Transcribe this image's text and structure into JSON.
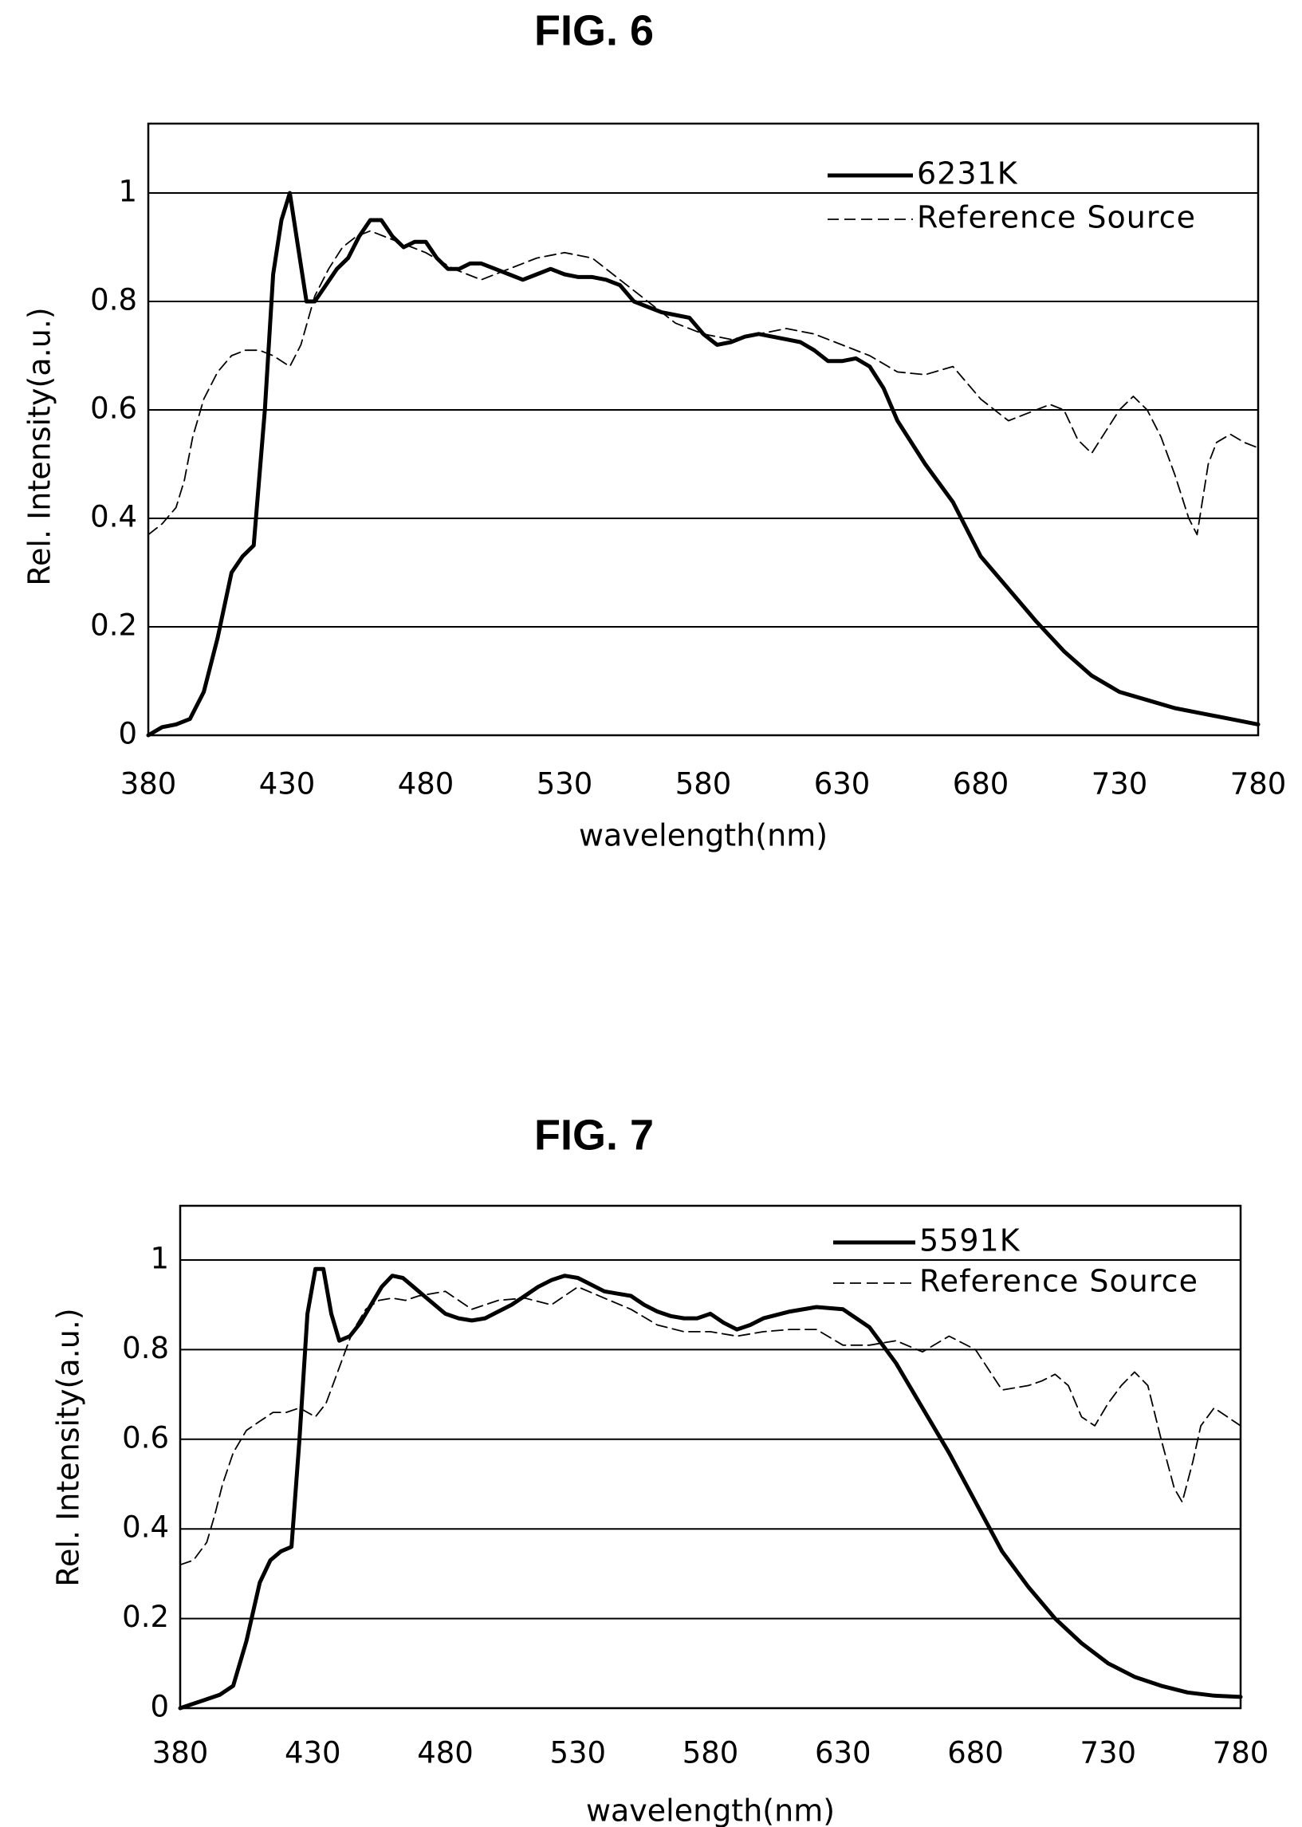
{
  "page": {
    "background": "#ffffff"
  },
  "chart_data": [
    {
      "type": "line",
      "title": "FIG. 6",
      "xlabel": "wavelength(nm)",
      "ylabel": "Rel. Intensity(a.u.)",
      "xlim": [
        380,
        780
      ],
      "ylim": [
        0,
        1.1
      ],
      "xticks": [
        "380",
        "430",
        "480",
        "530",
        "580",
        "630",
        "680",
        "730",
        "780"
      ],
      "yticks": [
        "0",
        "0.2",
        "0.4",
        "0.6",
        "0.8",
        "1"
      ],
      "grid": "horizontal",
      "legend_position": "top-right",
      "series": [
        {
          "name": "6231K",
          "style": "solid-thick",
          "color": "#000000",
          "x": [
            380,
            385,
            390,
            395,
            400,
            405,
            410,
            414,
            418,
            422,
            425,
            428,
            431,
            434,
            437,
            440,
            444,
            448,
            452,
            456,
            460,
            464,
            468,
            472,
            476,
            480,
            484,
            488,
            492,
            496,
            500,
            505,
            510,
            515,
            520,
            525,
            530,
            535,
            540,
            545,
            550,
            555,
            560,
            565,
            570,
            575,
            580,
            585,
            590,
            595,
            600,
            605,
            610,
            615,
            620,
            625,
            630,
            635,
            640,
            645,
            650,
            660,
            670,
            680,
            690,
            700,
            710,
            720,
            730,
            740,
            750,
            760,
            770,
            780
          ],
          "y": [
            0,
            0.015,
            0.02,
            0.03,
            0.08,
            0.18,
            0.3,
            0.33,
            0.35,
            0.6,
            0.85,
            0.95,
            1.0,
            0.9,
            0.8,
            0.8,
            0.83,
            0.86,
            0.88,
            0.92,
            0.95,
            0.95,
            0.92,
            0.9,
            0.91,
            0.91,
            0.88,
            0.86,
            0.86,
            0.87,
            0.87,
            0.86,
            0.85,
            0.84,
            0.85,
            0.86,
            0.85,
            0.845,
            0.845,
            0.84,
            0.83,
            0.8,
            0.79,
            0.78,
            0.775,
            0.77,
            0.74,
            0.72,
            0.725,
            0.735,
            0.74,
            0.735,
            0.73,
            0.725,
            0.71,
            0.69,
            0.69,
            0.695,
            0.68,
            0.64,
            0.58,
            0.5,
            0.43,
            0.33,
            0.27,
            0.21,
            0.155,
            0.11,
            0.08,
            0.065,
            0.05,
            0.04,
            0.03,
            0.02
          ]
        },
        {
          "name": "Reference Source",
          "style": "dashed-thin",
          "color": "#000000",
          "x": [
            380,
            385,
            390,
            393,
            396,
            400,
            405,
            410,
            415,
            420,
            425,
            428,
            431,
            435,
            440,
            445,
            450,
            455,
            460,
            465,
            470,
            480,
            490,
            500,
            510,
            520,
            530,
            540,
            550,
            560,
            570,
            580,
            590,
            600,
            610,
            620,
            630,
            640,
            650,
            660,
            670,
            680,
            690,
            700,
            705,
            710,
            715,
            720,
            725,
            730,
            735,
            740,
            745,
            750,
            755,
            758,
            762,
            765,
            770,
            775,
            780
          ],
          "y": [
            0.37,
            0.39,
            0.42,
            0.47,
            0.55,
            0.62,
            0.67,
            0.7,
            0.71,
            0.71,
            0.7,
            0.69,
            0.68,
            0.72,
            0.81,
            0.86,
            0.9,
            0.92,
            0.93,
            0.92,
            0.91,
            0.89,
            0.86,
            0.84,
            0.86,
            0.88,
            0.89,
            0.88,
            0.84,
            0.8,
            0.76,
            0.74,
            0.73,
            0.74,
            0.75,
            0.74,
            0.72,
            0.7,
            0.67,
            0.665,
            0.68,
            0.62,
            0.58,
            0.6,
            0.61,
            0.6,
            0.545,
            0.52,
            0.56,
            0.6,
            0.625,
            0.6,
            0.55,
            0.48,
            0.4,
            0.37,
            0.5,
            0.54,
            0.555,
            0.54,
            0.53
          ]
        }
      ]
    },
    {
      "type": "line",
      "title": "FIG. 7",
      "xlabel": "wavelength(nm)",
      "ylabel": "Rel. Intensity(a.u.)",
      "xlim": [
        380,
        780
      ],
      "ylim": [
        0,
        1.1
      ],
      "xticks": [
        "380",
        "430",
        "480",
        "530",
        "580",
        "630",
        "680",
        "730",
        "780"
      ],
      "yticks": [
        "0",
        "0.2",
        "0.4",
        "0.6",
        "0.8",
        "1"
      ],
      "grid": "horizontal",
      "legend_position": "top-right",
      "series": [
        {
          "name": "5591K",
          "style": "solid-thick",
          "color": "#000000",
          "x": [
            380,
            385,
            390,
            395,
            400,
            405,
            410,
            414,
            418,
            422,
            425,
            428,
            431,
            434,
            437,
            440,
            444,
            448,
            452,
            456,
            460,
            464,
            468,
            472,
            476,
            480,
            485,
            490,
            495,
            500,
            505,
            510,
            515,
            520,
            525,
            530,
            535,
            540,
            545,
            550,
            555,
            560,
            565,
            570,
            575,
            580,
            585,
            590,
            595,
            600,
            610,
            620,
            630,
            640,
            650,
            660,
            670,
            680,
            690,
            700,
            710,
            720,
            730,
            740,
            750,
            760,
            770,
            780
          ],
          "y": [
            0,
            0.01,
            0.02,
            0.03,
            0.05,
            0.15,
            0.28,
            0.33,
            0.35,
            0.36,
            0.6,
            0.88,
            0.98,
            0.98,
            0.88,
            0.82,
            0.83,
            0.86,
            0.9,
            0.94,
            0.965,
            0.96,
            0.94,
            0.92,
            0.9,
            0.88,
            0.87,
            0.865,
            0.87,
            0.885,
            0.9,
            0.92,
            0.94,
            0.955,
            0.965,
            0.96,
            0.945,
            0.93,
            0.925,
            0.92,
            0.9,
            0.885,
            0.875,
            0.87,
            0.87,
            0.88,
            0.86,
            0.845,
            0.855,
            0.87,
            0.885,
            0.895,
            0.89,
            0.85,
            0.77,
            0.67,
            0.57,
            0.46,
            0.35,
            0.27,
            0.2,
            0.145,
            0.1,
            0.07,
            0.05,
            0.035,
            0.028,
            0.025
          ]
        },
        {
          "name": "Reference Source",
          "style": "dashed-thin",
          "color": "#000000",
          "x": [
            380,
            385,
            390,
            393,
            396,
            400,
            405,
            410,
            415,
            420,
            425,
            428,
            431,
            435,
            440,
            445,
            450,
            455,
            460,
            465,
            470,
            480,
            490,
            500,
            510,
            520,
            530,
            540,
            550,
            560,
            570,
            580,
            590,
            600,
            610,
            620,
            630,
            640,
            650,
            660,
            670,
            680,
            690,
            700,
            705,
            710,
            715,
            720,
            725,
            730,
            735,
            740,
            745,
            750,
            755,
            758,
            762,
            765,
            770,
            775,
            780
          ],
          "y": [
            0.32,
            0.33,
            0.37,
            0.43,
            0.5,
            0.57,
            0.62,
            0.64,
            0.66,
            0.66,
            0.67,
            0.66,
            0.65,
            0.68,
            0.76,
            0.84,
            0.89,
            0.91,
            0.915,
            0.91,
            0.92,
            0.93,
            0.89,
            0.91,
            0.915,
            0.9,
            0.94,
            0.915,
            0.89,
            0.855,
            0.84,
            0.84,
            0.83,
            0.84,
            0.845,
            0.845,
            0.81,
            0.81,
            0.82,
            0.795,
            0.83,
            0.8,
            0.71,
            0.72,
            0.73,
            0.745,
            0.72,
            0.65,
            0.63,
            0.68,
            0.72,
            0.75,
            0.72,
            0.6,
            0.49,
            0.46,
            0.55,
            0.63,
            0.67,
            0.65,
            0.63
          ]
        }
      ]
    }
  ]
}
